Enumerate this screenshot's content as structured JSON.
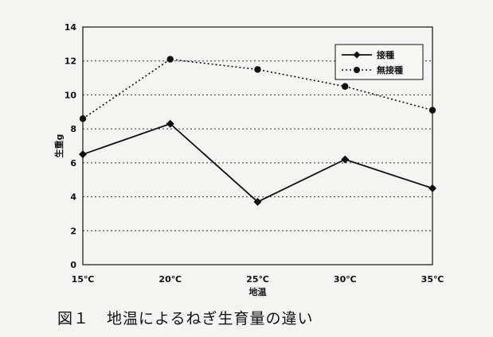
{
  "chart_data": {
    "type": "line",
    "categories": [
      "15℃",
      "20℃",
      "25℃",
      "30℃",
      "35℃"
    ],
    "series": [
      {
        "name": "接種",
        "values": [
          6.5,
          8.3,
          3.7,
          6.2,
          4.5
        ],
        "style": "solid",
        "marker": "diamond",
        "color": "#111111"
      },
      {
        "name": "無接種",
        "values": [
          8.6,
          12.1,
          11.5,
          10.5,
          9.1
        ],
        "style": "dotted",
        "marker": "circle",
        "color": "#111111"
      }
    ],
    "title": "",
    "xlabel": "地温",
    "ylabel": "生重g",
    "ylim": [
      0,
      14
    ],
    "yticks": [
      0,
      2,
      4,
      6,
      8,
      10,
      12,
      14
    ],
    "grid": "horizontal dotted",
    "legend_position": "top-right"
  },
  "caption": {
    "figure_number": "図１",
    "text": "地温によるねぎ生育量の違い"
  }
}
